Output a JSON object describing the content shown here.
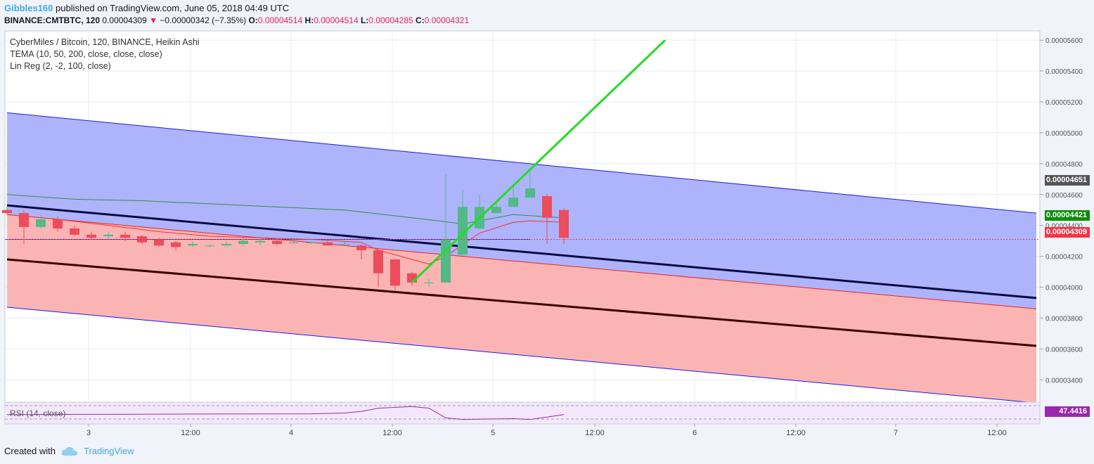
{
  "header": {
    "user": "Gibbles160",
    "published": "published on TradingView.com, June 05, 2018 04:49 UTC",
    "symbol": "BINANCE:CMTBTC, 120",
    "last": "0.00004309",
    "change": "−0.00000342 (−7.35%)",
    "o_label": "O:",
    "o_value": "0.00004514",
    "h_label": "H:",
    "h_value": "0.00004514",
    "l_label": "L:",
    "l_value": "0.00004285",
    "c_label": "C:",
    "c_value": "0.00004321"
  },
  "legend": {
    "line1": "CyberMiles / Bitcoin, 120, BINANCE, Heikin Ashi",
    "line2": "TEMA (10, 50, 200, close, close, close)",
    "line3": "Lin Reg (2, -2, 100, close)"
  },
  "rsi": {
    "label": "RSI (14, close)",
    "value": "47.4416"
  },
  "price_tags": {
    "tag1": "0.00004651",
    "tag2": "0.00004421",
    "tag3": "0.00004309"
  },
  "footer": {
    "created_with": "Created with",
    "brand": "TradingView"
  },
  "colors": {
    "bull": "#53b987",
    "bear": "#eb4d5c",
    "upper_band": "#aab0fb",
    "lower_band": "#fbb0b0",
    "trend": "#22dd22"
  },
  "chart_data": {
    "type": "candlestick",
    "chart_style": "Heikin Ashi",
    "y_ticks": [
      "0.00005600",
      "0.00005400",
      "0.00005200",
      "0.00005000",
      "0.00004800",
      "0.00004600",
      "0.00004400",
      "0.00004200",
      "0.00004000",
      "0.00003800",
      "0.00003600",
      "0.00003400"
    ],
    "x_ticks": [
      "3",
      "12:00",
      "4",
      "12:00",
      "5",
      "12:00",
      "6",
      "12:00",
      "7",
      "12:00"
    ],
    "ylim": [
      3.26e-05,
      5.66e-05
    ],
    "candles": [
      {
        "o": 4500,
        "c": 4480,
        "h": 4520,
        "l": 4470
      },
      {
        "o": 4480,
        "c": 4390,
        "h": 4500,
        "l": 4280
      },
      {
        "o": 4390,
        "c": 4440,
        "h": 4470,
        "l": 4380
      },
      {
        "o": 4440,
        "c": 4380,
        "h": 4460,
        "l": 4360
      },
      {
        "o": 4380,
        "c": 4340,
        "h": 4400,
        "l": 4330
      },
      {
        "o": 4340,
        "c": 4320,
        "h": 4360,
        "l": 4310
      },
      {
        "o": 4330,
        "c": 4340,
        "h": 4360,
        "l": 4310
      },
      {
        "o": 4340,
        "c": 4320,
        "h": 4360,
        "l": 4300
      },
      {
        "o": 4330,
        "c": 4290,
        "h": 4340,
        "l": 4280
      },
      {
        "o": 4310,
        "c": 4270,
        "h": 4320,
        "l": 4260
      },
      {
        "o": 4290,
        "c": 4260,
        "h": 4300,
        "l": 4240
      },
      {
        "o": 4270,
        "c": 4280,
        "h": 4300,
        "l": 4260
      },
      {
        "o": 4270,
        "c": 4270,
        "h": 4280,
        "l": 4260
      },
      {
        "o": 4270,
        "c": 4280,
        "h": 4300,
        "l": 4270
      },
      {
        "o": 4280,
        "c": 4300,
        "h": 4320,
        "l": 4270
      },
      {
        "o": 4290,
        "c": 4300,
        "h": 4310,
        "l": 4270
      },
      {
        "o": 4300,
        "c": 4280,
        "h": 4310,
        "l": 4270
      },
      {
        "o": 4290,
        "c": 4290,
        "h": 4310,
        "l": 4280
      },
      {
        "o": 4290,
        "c": 4290,
        "h": 4300,
        "l": 4280
      },
      {
        "o": 4290,
        "c": 4270,
        "h": 4310,
        "l": 4270
      },
      {
        "o": 4280,
        "c": 4280,
        "h": 4300,
        "l": 4270
      },
      {
        "o": 4270,
        "c": 4240,
        "h": 4280,
        "l": 4180
      },
      {
        "o": 4240,
        "c": 4090,
        "h": 4250,
        "l": 4000
      },
      {
        "o": 4180,
        "c": 4010,
        "h": 4180,
        "l": 3980
      },
      {
        "o": 4090,
        "c": 4030,
        "h": 4100,
        "l": 4010
      },
      {
        "o": 4030,
        "c": 4030,
        "h": 4060,
        "l": 4000
      },
      {
        "o": 4030,
        "c": 4310,
        "h": 4730,
        "l": 4030
      },
      {
        "o": 4210,
        "c": 4520,
        "h": 4630,
        "l": 4210
      },
      {
        "o": 4380,
        "c": 4520,
        "h": 4600,
        "l": 4380
      },
      {
        "o": 4480,
        "c": 4520,
        "h": 4550,
        "l": 4480
      },
      {
        "o": 4520,
        "c": 4580,
        "h": 4660,
        "l": 4520
      },
      {
        "o": 4580,
        "c": 4640,
        "h": 4750,
        "l": 4580
      },
      {
        "o": 4590,
        "c": 4450,
        "h": 4600,
        "l": 4280
      },
      {
        "o": 4500,
        "c": 4320,
        "h": 4510,
        "l": 4280
      }
    ],
    "tema_series": [
      {
        "name": "TEMA fast",
        "points": [
          [
            0,
            4470
          ],
          [
            3,
            4440
          ],
          [
            6,
            4400
          ],
          [
            9,
            4360
          ],
          [
            12,
            4330
          ],
          [
            15,
            4320
          ],
          [
            18,
            4310
          ],
          [
            21,
            4290
          ],
          [
            22,
            4240
          ],
          [
            24,
            4180
          ],
          [
            25,
            4150
          ],
          [
            26,
            4200
          ],
          [
            28,
            4350
          ],
          [
            30,
            4420
          ],
          [
            31,
            4430
          ],
          [
            33,
            4420
          ]
        ]
      },
      {
        "name": "TEMA mid",
        "points": [
          [
            0,
            4600
          ],
          [
            4,
            4570
          ],
          [
            8,
            4560
          ],
          [
            12,
            4540
          ],
          [
            16,
            4520
          ],
          [
            20,
            4500
          ],
          [
            24,
            4450
          ],
          [
            27,
            4410
          ],
          [
            30,
            4470
          ],
          [
            33,
            4450
          ]
        ]
      }
    ],
    "lin_reg": {
      "upper_band": {
        "x0": 0,
        "y0": 5130,
        "x1": 61,
        "y1": 4480
      },
      "center_line": {
        "x0": 0,
        "y0": 4530,
        "x1": 61,
        "y1": 3930
      },
      "mid_line": {
        "x0": 0,
        "y0": 4180,
        "x1": 61,
        "y1": 3620
      },
      "lower_inner": {
        "x0": 0,
        "y0": 4470,
        "x1": 61,
        "y1": 3860
      },
      "lower_band": {
        "x0": 0,
        "y0": 3870,
        "x1": 61,
        "y1": 3250
      }
    },
    "trend_line": {
      "x0": 24,
      "y0": 4030,
      "x1": 39,
      "y1": 5600
    },
    "rsi_points": [
      [
        0,
        0.4
      ],
      [
        6,
        0.42
      ],
      [
        12,
        0.44
      ],
      [
        18,
        0.45
      ],
      [
        20,
        0.5
      ],
      [
        21,
        0.6
      ],
      [
        22,
        0.8
      ],
      [
        24,
        0.9
      ],
      [
        25,
        0.8
      ],
      [
        26,
        0.2
      ],
      [
        27,
        0.1
      ],
      [
        28,
        0.12
      ],
      [
        30,
        0.15
      ],
      [
        31,
        0.1
      ],
      [
        33,
        0.4
      ]
    ]
  }
}
